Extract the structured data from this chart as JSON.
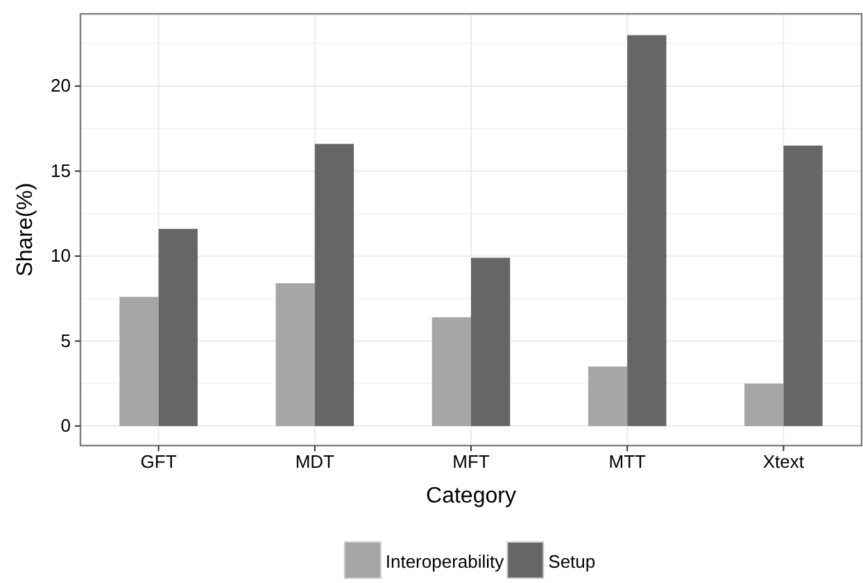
{
  "chart_data": {
    "type": "bar",
    "xlabel": "Category",
    "ylabel": "Share(%)",
    "categories": [
      "GFT",
      "MDT",
      "MFT",
      "MTT",
      "Xtext"
    ],
    "series": [
      {
        "name": "Interoperability",
        "color": "#a6a6a6",
        "values": [
          7.6,
          8.4,
          6.4,
          3.5,
          2.5
        ]
      },
      {
        "name": "Setup",
        "color": "#666666",
        "values": [
          11.6,
          16.6,
          9.9,
          23.0,
          16.5
        ]
      }
    ],
    "ylim": [
      -1.15,
      24.25
    ],
    "yticks": [
      0,
      5,
      10,
      15,
      20
    ],
    "grid": true,
    "legend": "bottom"
  }
}
